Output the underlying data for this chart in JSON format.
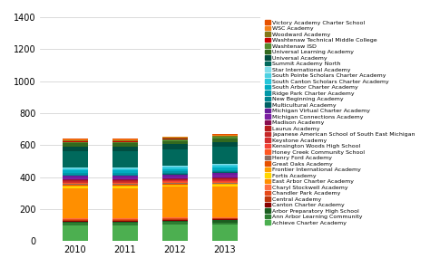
{
  "years": [
    "2010",
    "2011",
    "2012",
    "2013"
  ],
  "segments": [
    {
      "name": "Achieve Charter Academy",
      "color": "#4CAF50",
      "values": [
        95,
        95,
        100,
        100
      ]
    },
    {
      "name": "Ann Arbor Learning Community",
      "color": "#2E7D32",
      "values": [
        18,
        18,
        18,
        15
      ]
    },
    {
      "name": "Arbor Preparatory High School",
      "color": "#1B5E20",
      "values": [
        8,
        8,
        10,
        15
      ]
    },
    {
      "name": "Canton Charter Academy",
      "color": "#880000",
      "values": [
        5,
        5,
        5,
        5
      ]
    },
    {
      "name": "Central Academy",
      "color": "#BF360C",
      "values": [
        5,
        5,
        5,
        5
      ]
    },
    {
      "name": "Chandler Park Academy",
      "color": "#E64A19",
      "values": [
        5,
        5,
        5,
        5
      ]
    },
    {
      "name": "Charyl Stockwell Academy",
      "color": "#FF7043",
      "values": [
        5,
        5,
        5,
        5
      ]
    },
    {
      "name": "East Arbor Charter Academy",
      "color": "#FF8F00",
      "values": [
        190,
        190,
        190,
        190
      ]
    },
    {
      "name": "Fortis Academy",
      "color": "#FFD600",
      "values": [
        10,
        10,
        10,
        10
      ]
    },
    {
      "name": "Frontier International Academy",
      "color": "#FFA000",
      "values": [
        5,
        5,
        5,
        5
      ]
    },
    {
      "name": "Great Oaks Academy",
      "color": "#E65100",
      "values": [
        5,
        5,
        5,
        5
      ]
    },
    {
      "name": "Henry Ford Academy",
      "color": "#8D6E63",
      "values": [
        5,
        5,
        5,
        5
      ]
    },
    {
      "name": "Honey Creek Community School",
      "color": "#FF5722",
      "values": [
        5,
        5,
        5,
        5
      ]
    },
    {
      "name": "Kensington Woods High School",
      "color": "#F44336",
      "values": [
        5,
        5,
        5,
        5
      ]
    },
    {
      "name": "Keystone Academy",
      "color": "#D32F2F",
      "values": [
        5,
        5,
        5,
        5
      ]
    },
    {
      "name": "Japanese American School of South East Michigan",
      "color": "#C62828",
      "values": [
        5,
        5,
        5,
        5
      ]
    },
    {
      "name": "Laurus Academy",
      "color": "#B71C1C",
      "values": [
        5,
        5,
        5,
        5
      ]
    },
    {
      "name": "Madison Academy",
      "color": "#880E4F",
      "values": [
        5,
        5,
        5,
        5
      ]
    },
    {
      "name": "Michigan Connections Academy",
      "color": "#7B1FA2",
      "values": [
        10,
        10,
        12,
        20
      ]
    },
    {
      "name": "Michigan Virtual Charter Academy",
      "color": "#6A1B9A",
      "values": [
        10,
        10,
        10,
        10
      ]
    },
    {
      "name": "Multicultural Academy",
      "color": "#006064",
      "values": [
        5,
        5,
        5,
        5
      ]
    },
    {
      "name": "New Beginning Academy",
      "color": "#00838F",
      "values": [
        5,
        5,
        5,
        5
      ]
    },
    {
      "name": "Ridge Park Charter Academy",
      "color": "#0097A7",
      "values": [
        10,
        10,
        10,
        10
      ]
    },
    {
      "name": "South Arbor Charter Academy",
      "color": "#00ACC1",
      "values": [
        15,
        15,
        15,
        15
      ]
    },
    {
      "name": "South Canton Scholars Charter Academy",
      "color": "#26C6DA",
      "values": [
        10,
        10,
        10,
        10
      ]
    },
    {
      "name": "South Pointe Scholars Charter Academy",
      "color": "#4DD0E1",
      "values": [
        5,
        5,
        5,
        5
      ]
    },
    {
      "name": "Star International Academy",
      "color": "#80DEEA",
      "values": [
        5,
        5,
        5,
        5
      ]
    },
    {
      "name": "Summit Academy North",
      "color": "#00695C",
      "values": [
        100,
        100,
        105,
        110
      ]
    },
    {
      "name": "Universal Academy",
      "color": "#004D40",
      "values": [
        30,
        30,
        30,
        30
      ]
    },
    {
      "name": "Universal Learning Academy",
      "color": "#33691E",
      "values": [
        20,
        20,
        20,
        20
      ]
    },
    {
      "name": "Washtenaw ISD",
      "color": "#558B2F",
      "values": [
        10,
        10,
        10,
        10
      ]
    },
    {
      "name": "Washtenaw Technical Middle College",
      "color": "#CC0000",
      "values": [
        5,
        5,
        5,
        5
      ]
    },
    {
      "name": "Woodward Academy",
      "color": "#827717",
      "values": [
        5,
        5,
        5,
        5
      ]
    },
    {
      "name": "WSC Academy",
      "color": "#F57F17",
      "values": [
        5,
        5,
        5,
        5
      ]
    },
    {
      "name": "Victory Academy Charter School",
      "color": "#E65100",
      "values": [
        5,
        5,
        5,
        5
      ]
    }
  ],
  "ylim": [
    0,
    1400
  ],
  "yticks": [
    0,
    200,
    400,
    600,
    800,
    1000,
    1200,
    1400
  ],
  "bar_width": 0.5
}
